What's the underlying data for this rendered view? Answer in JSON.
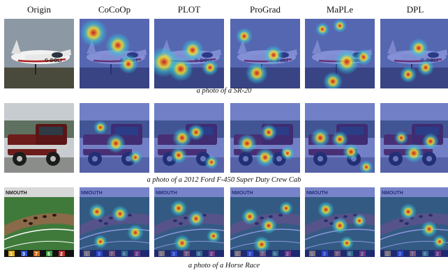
{
  "headers": [
    "Origin",
    "CoCoOp",
    "PLOT",
    "ProGrad",
    "MaPLe",
    "DPL"
  ],
  "rows": [
    {
      "caption": "a photo of a SR-20",
      "plate": "G-DOLI",
      "kind": "plane",
      "heat": [
        [],
        [
          [
            20,
            20,
            20
          ],
          [
            55,
            38,
            18
          ],
          [
            70,
            65,
            14
          ]
        ],
        [
          [
            14,
            62,
            22
          ],
          [
            38,
            72,
            18
          ],
          [
            55,
            45,
            16
          ],
          [
            80,
            70,
            12
          ]
        ],
        [
          [
            38,
            78,
            16
          ],
          [
            62,
            52,
            14
          ],
          [
            20,
            25,
            12
          ]
        ],
        [
          [
            25,
            15,
            10
          ],
          [
            50,
            10,
            10
          ],
          [
            60,
            62,
            18
          ],
          [
            84,
            55,
            12
          ],
          [
            40,
            90,
            14
          ]
        ],
        [
          [
            55,
            42,
            14
          ],
          [
            65,
            70,
            12
          ],
          [
            40,
            80,
            12
          ]
        ]
      ]
    },
    {
      "caption": "a photo of a 2012 Ford F-450 Super Duty Crew Cab",
      "plate": "",
      "kind": "truck",
      "heat": [
        [],
        [
          [
            52,
            58,
            14
          ],
          [
            30,
            35,
            10
          ],
          [
            80,
            78,
            10
          ]
        ],
        [
          [
            40,
            50,
            14
          ],
          [
            60,
            42,
            12
          ],
          [
            35,
            75,
            12
          ],
          [
            82,
            85,
            10
          ]
        ],
        [
          [
            24,
            58,
            14
          ],
          [
            55,
            42,
            12
          ],
          [
            50,
            78,
            14
          ],
          [
            82,
            72,
            10
          ]
        ],
        [
          [
            22,
            50,
            14
          ],
          [
            50,
            52,
            12
          ],
          [
            66,
            70,
            12
          ],
          [
            88,
            92,
            10
          ]
        ],
        [
          [
            48,
            72,
            14
          ],
          [
            72,
            55,
            12
          ],
          [
            30,
            50,
            10
          ]
        ]
      ]
    },
    {
      "caption": "a photo of a Horse Race",
      "plate": "",
      "kind": "race",
      "scoreboard": [
        "1",
        "3",
        "7",
        "6",
        "2"
      ],
      "sign": "NMOUTH",
      "heat": [
        [],
        [
          [
            25,
            35,
            12
          ],
          [
            58,
            38,
            12
          ],
          [
            80,
            65,
            12
          ],
          [
            30,
            78,
            10
          ]
        ],
        [
          [
            35,
            30,
            12
          ],
          [
            60,
            45,
            12
          ],
          [
            85,
            70,
            10
          ],
          [
            40,
            80,
            12
          ]
        ],
        [
          [
            28,
            42,
            12
          ],
          [
            55,
            55,
            12
          ],
          [
            80,
            30,
            10
          ],
          [
            45,
            82,
            12
          ]
        ],
        [
          [
            30,
            32,
            12
          ],
          [
            50,
            55,
            12
          ],
          [
            78,
            48,
            10
          ],
          [
            60,
            80,
            10
          ]
        ],
        [
          [
            40,
            35,
            12
          ],
          [
            70,
            60,
            12
          ],
          [
            85,
            78,
            10
          ]
        ]
      ]
    }
  ]
}
